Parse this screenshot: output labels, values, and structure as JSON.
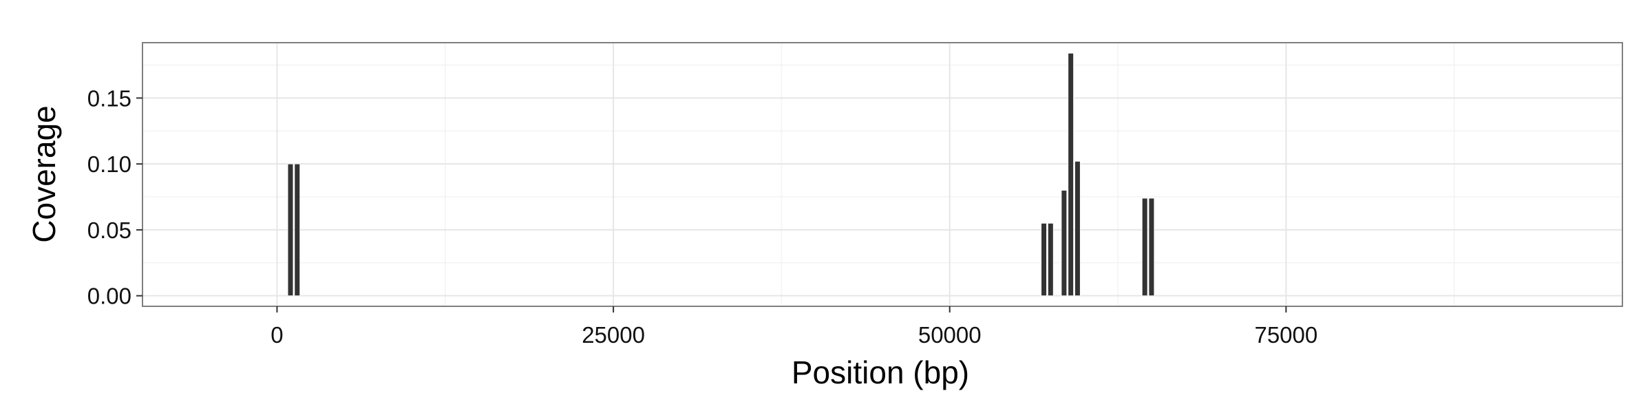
{
  "chart_data": {
    "type": "bar",
    "title": "",
    "xlabel": "Position (bp)",
    "ylabel": "Coverage",
    "xlim": [
      -10000,
      100000
    ],
    "ylim": [
      -0.008,
      0.192
    ],
    "x_ticks": [
      0,
      25000,
      50000,
      75000
    ],
    "x_tick_labels": [
      "0",
      "25000",
      "50000",
      "75000"
    ],
    "y_ticks": [
      0.0,
      0.05,
      0.1,
      0.15
    ],
    "y_tick_labels": [
      "0.00",
      "0.05",
      "0.10",
      "0.15"
    ],
    "bar_width": 400,
    "x": [
      1000,
      1500,
      57000,
      57500,
      58500,
      59000,
      59500,
      64500,
      65000
    ],
    "values": [
      0.1,
      0.1,
      0.055,
      0.055,
      0.08,
      0.184,
      0.102,
      0.074,
      0.074
    ],
    "grid": true,
    "bar_color": "#333333",
    "panel_border_color": "#7f7f7f",
    "grid_major_color": "#e6e6e6",
    "grid_minor_color": "#f3f3f3"
  }
}
